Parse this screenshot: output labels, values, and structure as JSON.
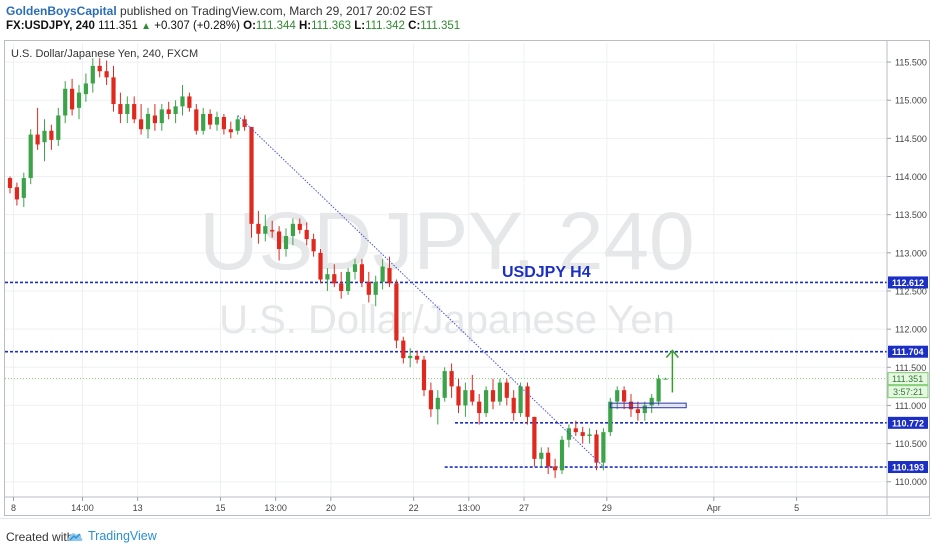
{
  "header": {
    "author": "GoldenBoysCapital",
    "published_text": "published on TradingView.com, March 29, 2017 20:02 EST",
    "symbol_label": "FX:USDJPY, 240",
    "last_price": "111.351",
    "change_arrow": "▲",
    "change": "+0.307 (+0.28%)",
    "o_label": "O:",
    "o_value": "111.344",
    "h_label": "H:",
    "h_value": "111.363",
    "l_label": "L:",
    "l_value": "111.342",
    "c_label": "C:",
    "c_value": "111.351"
  },
  "footer": {
    "created_with": "Created with",
    "brand": "TradingView"
  },
  "chart_data": {
    "type": "candlestick",
    "title": "U.S. Dollar/Japanese Yen, 240, FXCM",
    "watermark_symbol": "USDJPY, 240",
    "watermark_name": "U.S. Dollar/Japanese Yen",
    "annotation_text": "USDJPY H4",
    "ylim": [
      109.8,
      115.75
    ],
    "y_ticks": [
      "110.000",
      "110.500",
      "111.000",
      "111.500",
      "112.000",
      "112.500",
      "113.000",
      "113.500",
      "114.000",
      "114.500",
      "115.000",
      "115.500"
    ],
    "x_ticks": [
      {
        "label": "8",
        "index": 0.5
      },
      {
        "label": "14:00",
        "index": 10.5
      },
      {
        "label": "13",
        "index": 18.5
      },
      {
        "label": "15",
        "index": 30.5
      },
      {
        "label": "13:00",
        "index": 38.5
      },
      {
        "label": "20",
        "index": 46.5
      },
      {
        "label": "22",
        "index": 58.5
      },
      {
        "label": "13:00",
        "index": 66.5
      },
      {
        "label": "27",
        "index": 74.5
      },
      {
        "label": "29",
        "index": 86.5
      },
      {
        "label": "Apr",
        "index": 102
      },
      {
        "label": "5",
        "index": 114
      }
    ],
    "levels": [
      {
        "value": 112.612,
        "label": "112.612"
      },
      {
        "value": 111.704,
        "label": "111.704"
      },
      {
        "value": 110.772,
        "label": "110.772"
      },
      {
        "value": 110.193,
        "label": "110.193"
      }
    ],
    "current_price": {
      "value": 111.351,
      "label": "111.351",
      "countdown": "3:57:21"
    },
    "colors": {
      "up": "#3ca34a",
      "down": "#e0281f",
      "level": "#1c2fc4",
      "trendline": "#4a55d8",
      "arrow": "#3a9a2a",
      "last_line": "#7ccc6c"
    },
    "trendline": {
      "from": [
        33,
        114.8
      ],
      "to": [
        86,
        110.2
      ]
    },
    "arrow": {
      "index": 96,
      "from": 111.17,
      "to": 111.72
    },
    "box": {
      "from_index": 87,
      "to_index": 98,
      "top": 111.03,
      "bottom": 110.97
    },
    "candles": [
      [
        113.98,
        114.0,
        113.78,
        113.85
      ],
      [
        113.86,
        113.92,
        113.62,
        113.7
      ],
      [
        113.72,
        114.05,
        113.6,
        113.98
      ],
      [
        113.98,
        114.62,
        113.9,
        114.55
      ],
      [
        114.55,
        114.9,
        114.35,
        114.42
      ],
      [
        114.45,
        114.75,
        114.2,
        114.6
      ],
      [
        114.6,
        114.68,
        114.35,
        114.48
      ],
      [
        114.48,
        114.9,
        114.4,
        114.8
      ],
      [
        114.8,
        115.25,
        114.7,
        115.15
      ],
      [
        115.15,
        115.28,
        114.8,
        114.88
      ],
      [
        114.9,
        115.2,
        114.75,
        115.1
      ],
      [
        115.08,
        115.35,
        114.98,
        115.22
      ],
      [
        115.22,
        115.55,
        115.1,
        115.45
      ],
      [
        115.45,
        115.55,
        115.3,
        115.38
      ],
      [
        115.38,
        115.52,
        115.2,
        115.3
      ],
      [
        115.3,
        115.45,
        114.85,
        114.95
      ],
      [
        114.95,
        115.1,
        114.7,
        114.82
      ],
      [
        114.82,
        115.05,
        114.7,
        114.95
      ],
      [
        114.95,
        115.05,
        114.7,
        114.75
      ],
      [
        114.75,
        114.95,
        114.55,
        114.62
      ],
      [
        114.62,
        114.9,
        114.5,
        114.82
      ],
      [
        114.8,
        114.95,
        114.6,
        114.7
      ],
      [
        114.7,
        114.95,
        114.6,
        114.88
      ],
      [
        114.88,
        114.98,
        114.75,
        114.82
      ],
      [
        114.82,
        115.0,
        114.7,
        114.92
      ],
      [
        114.92,
        115.2,
        114.8,
        115.05
      ],
      [
        115.05,
        115.1,
        114.85,
        114.9
      ],
      [
        114.88,
        114.95,
        114.55,
        114.6
      ],
      [
        114.6,
        114.9,
        114.55,
        114.82
      ],
      [
        114.82,
        114.88,
        114.62,
        114.68
      ],
      [
        114.68,
        114.85,
        114.6,
        114.78
      ],
      [
        114.78,
        114.82,
        114.55,
        114.62
      ],
      [
        114.62,
        114.72,
        114.5,
        114.58
      ],
      [
        114.6,
        114.8,
        114.55,
        114.75
      ],
      [
        114.75,
        114.8,
        114.6,
        114.65
      ],
      [
        114.65,
        114.65,
        113.2,
        113.38
      ],
      [
        113.38,
        113.55,
        113.12,
        113.25
      ],
      [
        113.25,
        113.5,
        113.15,
        113.35
      ],
      [
        113.3,
        113.42,
        113.2,
        113.28
      ],
      [
        113.28,
        113.35,
        112.9,
        113.05
      ],
      [
        113.05,
        113.32,
        112.95,
        113.22
      ],
      [
        113.22,
        113.45,
        113.1,
        113.38
      ],
      [
        113.38,
        113.45,
        113.25,
        113.3
      ],
      [
        113.3,
        113.4,
        113.1,
        113.18
      ],
      [
        113.18,
        113.25,
        112.95,
        113.02
      ],
      [
        113.0,
        113.05,
        112.6,
        112.65
      ],
      [
        112.65,
        112.8,
        112.5,
        112.72
      ],
      [
        112.72,
        112.85,
        112.55,
        112.6
      ],
      [
        112.6,
        112.75,
        112.4,
        112.5
      ],
      [
        112.5,
        112.8,
        112.45,
        112.75
      ],
      [
        112.75,
        112.92,
        112.65,
        112.85
      ],
      [
        112.85,
        112.92,
        112.55,
        112.62
      ],
      [
        112.62,
        112.75,
        112.35,
        112.45
      ],
      [
        112.45,
        112.7,
        112.3,
        112.62
      ],
      [
        112.62,
        112.92,
        112.52,
        112.82
      ],
      [
        112.8,
        112.95,
        112.55,
        112.6
      ],
      [
        112.6,
        112.65,
        111.75,
        111.85
      ],
      [
        111.85,
        111.9,
        111.55,
        111.62
      ],
      [
        111.62,
        111.75,
        111.5,
        111.65
      ],
      [
        111.65,
        111.72,
        111.55,
        111.6
      ],
      [
        111.6,
        111.65,
        111.12,
        111.2
      ],
      [
        111.2,
        111.3,
        110.85,
        110.95
      ],
      [
        110.95,
        111.2,
        110.75,
        111.1
      ],
      [
        111.1,
        111.5,
        111.05,
        111.45
      ],
      [
        111.45,
        111.55,
        111.1,
        111.25
      ],
      [
        111.25,
        111.35,
        110.9,
        111.0
      ],
      [
        111.0,
        111.3,
        110.85,
        111.2
      ],
      [
        111.2,
        111.4,
        111.0,
        111.05
      ],
      [
        111.05,
        111.15,
        110.75,
        110.9
      ],
      [
        110.9,
        111.25,
        110.85,
        111.2
      ],
      [
        111.2,
        111.35,
        110.95,
        111.05
      ],
      [
        111.05,
        111.35,
        111.0,
        111.3
      ],
      [
        111.3,
        111.35,
        111.0,
        111.1
      ],
      [
        111.1,
        111.2,
        110.8,
        110.9
      ],
      [
        110.9,
        111.3,
        110.85,
        111.25
      ],
      [
        111.25,
        111.3,
        110.75,
        110.85
      ],
      [
        110.85,
        110.85,
        110.2,
        110.3
      ],
      [
        110.3,
        110.45,
        110.2,
        110.38
      ],
      [
        110.38,
        110.45,
        110.1,
        110.2
      ],
      [
        110.2,
        110.3,
        110.05,
        110.15
      ],
      [
        110.15,
        110.6,
        110.1,
        110.55
      ],
      [
        110.55,
        110.75,
        110.45,
        110.7
      ],
      [
        110.7,
        110.8,
        110.6,
        110.65
      ],
      [
        110.65,
        110.72,
        110.5,
        110.6
      ],
      [
        110.6,
        110.7,
        110.5,
        110.62
      ],
      [
        110.62,
        110.68,
        110.15,
        110.25
      ],
      [
        110.25,
        110.7,
        110.15,
        110.65
      ],
      [
        110.65,
        111.1,
        110.6,
        111.05
      ],
      [
        111.05,
        111.25,
        110.95,
        111.2
      ],
      [
        111.2,
        111.25,
        110.95,
        111.05
      ],
      [
        111.05,
        111.15,
        110.85,
        110.95
      ],
      [
        110.95,
        111.05,
        110.8,
        110.9
      ],
      [
        110.9,
        111.05,
        110.8,
        111.0
      ],
      [
        111.0,
        111.15,
        110.9,
        111.1
      ],
      [
        111.05,
        111.4,
        111.0,
        111.35
      ],
      [
        111.344,
        111.363,
        111.342,
        111.351
      ]
    ]
  }
}
